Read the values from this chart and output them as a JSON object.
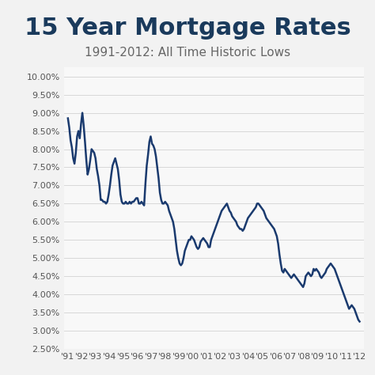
{
  "title": "15 Year Mortgage Rates",
  "subtitle": "1991-2012: All Time Historic Lows",
  "title_color": "#1a3a5c",
  "subtitle_color": "#666666",
  "line_color": "#1a3a6e",
  "background_color": "#f2f2f2",
  "plot_bg_color": "#f8f8f8",
  "grid_color": "#d8d8d8",
  "ylim": [
    2.5,
    10.25
  ],
  "yticks": [
    2.5,
    3.0,
    3.5,
    4.0,
    4.5,
    5.0,
    5.5,
    6.0,
    6.5,
    7.0,
    7.5,
    8.0,
    8.5,
    9.0,
    9.5,
    10.0
  ],
  "x_labels": [
    "'91",
    "'92",
    "'93",
    "'94",
    "'95",
    "'96",
    "'97",
    "'98",
    "'99",
    "'00",
    "'01",
    "'02",
    "'03",
    "'04",
    "'05",
    "'06",
    "'07",
    "'08",
    "'09",
    "'10",
    "'11",
    "'12"
  ],
  "x_values": [
    0,
    1,
    2,
    3,
    4,
    5,
    6,
    7,
    8,
    9,
    10,
    11,
    12,
    13,
    14,
    15,
    16,
    17,
    18,
    19,
    20,
    21
  ],
  "rates": [
    8.85,
    8.6,
    8.25,
    8.05,
    7.75,
    7.6,
    7.9,
    8.35,
    8.5,
    8.3,
    8.7,
    9.0,
    8.65,
    8.2,
    7.7,
    7.3,
    7.45,
    7.7,
    8.0,
    7.95,
    7.9,
    7.75,
    7.45,
    7.25,
    7.0,
    6.6,
    6.6,
    6.55,
    6.55,
    6.5,
    6.55,
    6.75,
    7.0,
    7.3,
    7.55,
    7.65,
    7.75,
    7.6,
    7.45,
    7.15,
    6.75,
    6.55,
    6.5,
    6.5,
    6.55,
    6.5,
    6.5,
    6.55,
    6.5,
    6.55,
    6.55,
    6.6,
    6.65,
    6.65,
    6.5,
    6.5,
    6.55,
    6.5,
    6.45,
    7.05,
    7.55,
    7.85,
    8.2,
    8.35,
    8.15,
    8.1,
    8.0,
    7.8,
    7.5,
    7.2,
    6.8,
    6.6,
    6.5,
    6.5,
    6.55,
    6.5,
    6.45,
    6.3,
    6.2,
    6.1,
    6.0,
    5.8,
    5.5,
    5.2,
    5.0,
    4.85,
    4.8,
    4.85,
    5.0,
    5.2,
    5.3,
    5.4,
    5.5,
    5.5,
    5.6,
    5.55,
    5.5,
    5.4,
    5.3,
    5.25,
    5.3,
    5.45,
    5.5,
    5.55,
    5.5,
    5.45,
    5.4,
    5.3,
    5.3,
    5.5,
    5.6,
    5.7,
    5.8,
    5.9,
    6.0,
    6.1,
    6.2,
    6.3,
    6.35,
    6.4,
    6.45,
    6.5,
    6.4,
    6.3,
    6.25,
    6.15,
    6.1,
    6.05,
    6.0,
    5.9,
    5.85,
    5.8,
    5.8,
    5.75,
    5.8,
    5.9,
    6.0,
    6.1,
    6.15,
    6.2,
    6.25,
    6.3,
    6.35,
    6.4,
    6.5,
    6.5,
    6.45,
    6.4,
    6.35,
    6.3,
    6.2,
    6.1,
    6.05,
    6.0,
    5.95,
    5.9,
    5.85,
    5.8,
    5.7,
    5.6,
    5.4,
    5.1,
    4.85,
    4.65,
    4.6,
    4.7,
    4.65,
    4.6,
    4.55,
    4.5,
    4.45,
    4.5,
    4.55,
    4.5,
    4.45,
    4.4,
    4.35,
    4.3,
    4.25,
    4.2,
    4.3,
    4.5,
    4.55,
    4.6,
    4.55,
    4.5,
    4.55,
    4.7,
    4.65,
    4.7,
    4.65,
    4.6,
    4.5,
    4.45,
    4.5,
    4.55,
    4.6,
    4.7,
    4.75,
    4.8,
    4.85,
    4.8,
    4.75,
    4.7,
    4.6,
    4.5,
    4.4,
    4.3,
    4.2,
    4.1,
    4.0,
    3.9,
    3.8,
    3.7,
    3.6,
    3.65,
    3.7,
    3.65,
    3.6,
    3.5,
    3.4,
    3.3,
    3.25
  ],
  "title_fontsize": 22,
  "subtitle_fontsize": 11,
  "tick_fontsize": 8
}
